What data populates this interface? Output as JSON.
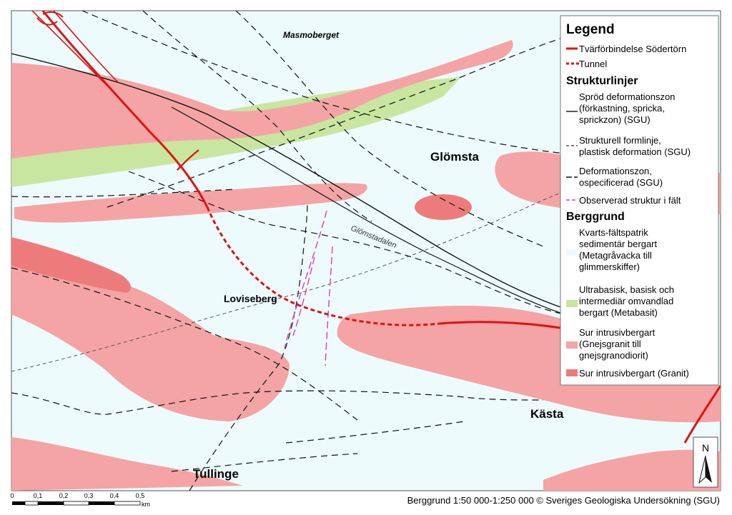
{
  "map": {
    "places": {
      "masmoberget": "Masmoberget",
      "glomsta": "Glömsta",
      "glomstadalen": "Glömstadalen",
      "loviseberg": "Loviseberg",
      "kasta": "Kästa",
      "tullinge": "Tullinge"
    },
    "colors": {
      "water_bg": "#eefbfd",
      "sedimentary": "#eefbfd",
      "metabasite": "#c8e6a0",
      "gneiss_granite": "#f4a4a4",
      "granite": "#ee7b7b",
      "route": "#e01212",
      "observed": "#d93ad0",
      "line": "#111111"
    }
  },
  "legend": {
    "title": "Legend",
    "route": "Tvärförbindelse Södertörn",
    "tunnel": "Tunnel",
    "struktur_head": "Strukturlinjer",
    "sprod": [
      "Spröd deformationszon",
      "(förkastning, spricka,",
      "sprickzon) (SGU)"
    ],
    "formlinje": [
      "Strukturell formlinje,",
      "plastisk deformation (SGU)"
    ],
    "deformationszon": [
      "Deformationszon,",
      "ospecificerad (SGU)"
    ],
    "observerad": "Observerad struktur i fält",
    "berggrund_head": "Berggrund",
    "kvarts": [
      "Kvarts-fältspatrik",
      "sedimentär bergart",
      "(Metagråvacka till",
      "glimmerskiffer)"
    ],
    "ultrabasisk": [
      "Ultrabasisk, basisk och",
      "intermediär omvandlad",
      "bergart (Metabasit)"
    ],
    "sur_gnejs": [
      "Sur intrusivbergart",
      "(Gnejsgranit till",
      "gnejsgranodiorit)"
    ],
    "sur_granit": "Sur intrusivbergart (Granit)"
  },
  "north_arrow": {
    "label": "N"
  },
  "scale_bar": {
    "ticks": [
      "0",
      "0,1",
      "0,2",
      "0,3",
      "0,4",
      "0,5"
    ],
    "unit": "km"
  },
  "attribution": "Berggrund 1:50 000-1:250 000 © Sveriges Geologiska Undersökning (SGU)"
}
